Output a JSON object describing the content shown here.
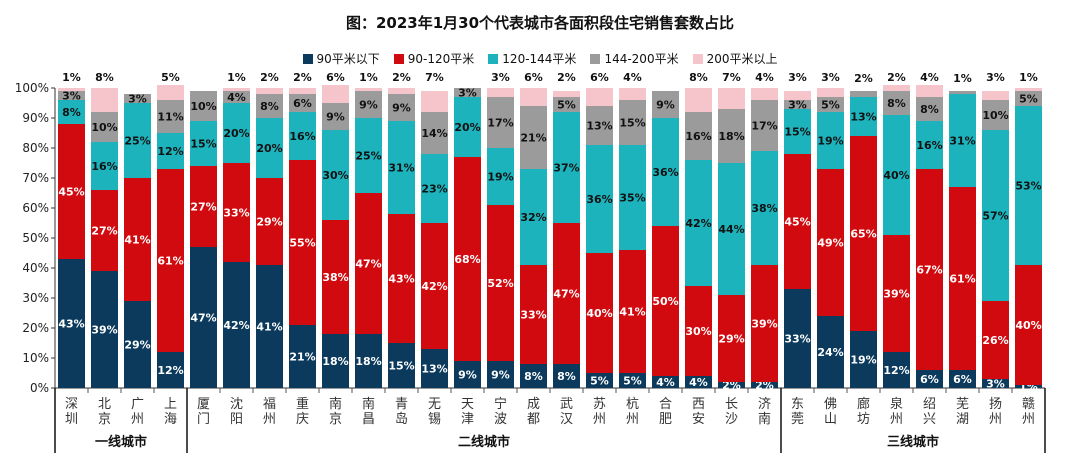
{
  "chart_data": {
    "type": "bar",
    "stacked": true,
    "title": "图：2023年1月30个代表城市各面积段住宅销售套数占比",
    "ylim": [
      0,
      100
    ],
    "yticks": [
      "0%",
      "10%",
      "20%",
      "30%",
      "40%",
      "50%",
      "60%",
      "70%",
      "80%",
      "90%",
      "100%"
    ],
    "legend_position": "top",
    "grid": false,
    "categories": [
      "深圳",
      "北京",
      "广州",
      "上海",
      "厦门",
      "沈阳",
      "福州",
      "重庆",
      "南京",
      "南昌",
      "青岛",
      "无锡",
      "天津",
      "宁波",
      "成都",
      "武汉",
      "苏州",
      "杭州",
      "合肥",
      "西安",
      "长沙",
      "济南",
      "东莞",
      "佛山",
      "廊坊",
      "泉州",
      "绍兴",
      "芜湖",
      "扬州",
      "赣州"
    ],
    "groups": [
      {
        "label": "一线城市",
        "count": 4
      },
      {
        "label": "二线城市",
        "count": 18
      },
      {
        "label": "三线城市",
        "count": 8
      }
    ],
    "series": [
      {
        "name": "90平米以下",
        "color": "#0b3a5d",
        "values": [
          43,
          39,
          29,
          12,
          47,
          42,
          41,
          21,
          18,
          18,
          15,
          13,
          9,
          9,
          8,
          8,
          5,
          5,
          4,
          4,
          2,
          2,
          33,
          24,
          19,
          12,
          6,
          6,
          3,
          1
        ]
      },
      {
        "name": "90-120平米",
        "color": "#d10a0f",
        "values": [
          45,
          27,
          41,
          61,
          27,
          33,
          29,
          55,
          38,
          47,
          43,
          42,
          68,
          52,
          33,
          47,
          40,
          41,
          50,
          30,
          29,
          39,
          45,
          49,
          65,
          39,
          67,
          61,
          26,
          40
        ]
      },
      {
        "name": "120-144平米",
        "color": "#1db3bd",
        "values": [
          8,
          16,
          25,
          12,
          15,
          20,
          20,
          16,
          30,
          25,
          31,
          23,
          20,
          19,
          32,
          37,
          36,
          35,
          36,
          42,
          44,
          38,
          15,
          19,
          13,
          40,
          16,
          31,
          57,
          53
        ]
      },
      {
        "name": "144-200平米",
        "color": "#9b9b9b",
        "values": [
          3,
          10,
          3,
          11,
          10,
          4,
          8,
          6,
          9,
          9,
          9,
          14,
          3,
          17,
          21,
          5,
          13,
          15,
          9,
          16,
          18,
          17,
          3,
          5,
          2,
          8,
          8,
          1,
          10,
          5
        ]
      },
      {
        "name": "200平米以上",
        "color": "#f6c5cb",
        "values": [
          1,
          8,
          null,
          5,
          null,
          1,
          2,
          2,
          6,
          1,
          2,
          7,
          null,
          3,
          6,
          2,
          6,
          4,
          null,
          8,
          7,
          4,
          3,
          3,
          null,
          2,
          4,
          null,
          3,
          1
        ]
      }
    ]
  }
}
